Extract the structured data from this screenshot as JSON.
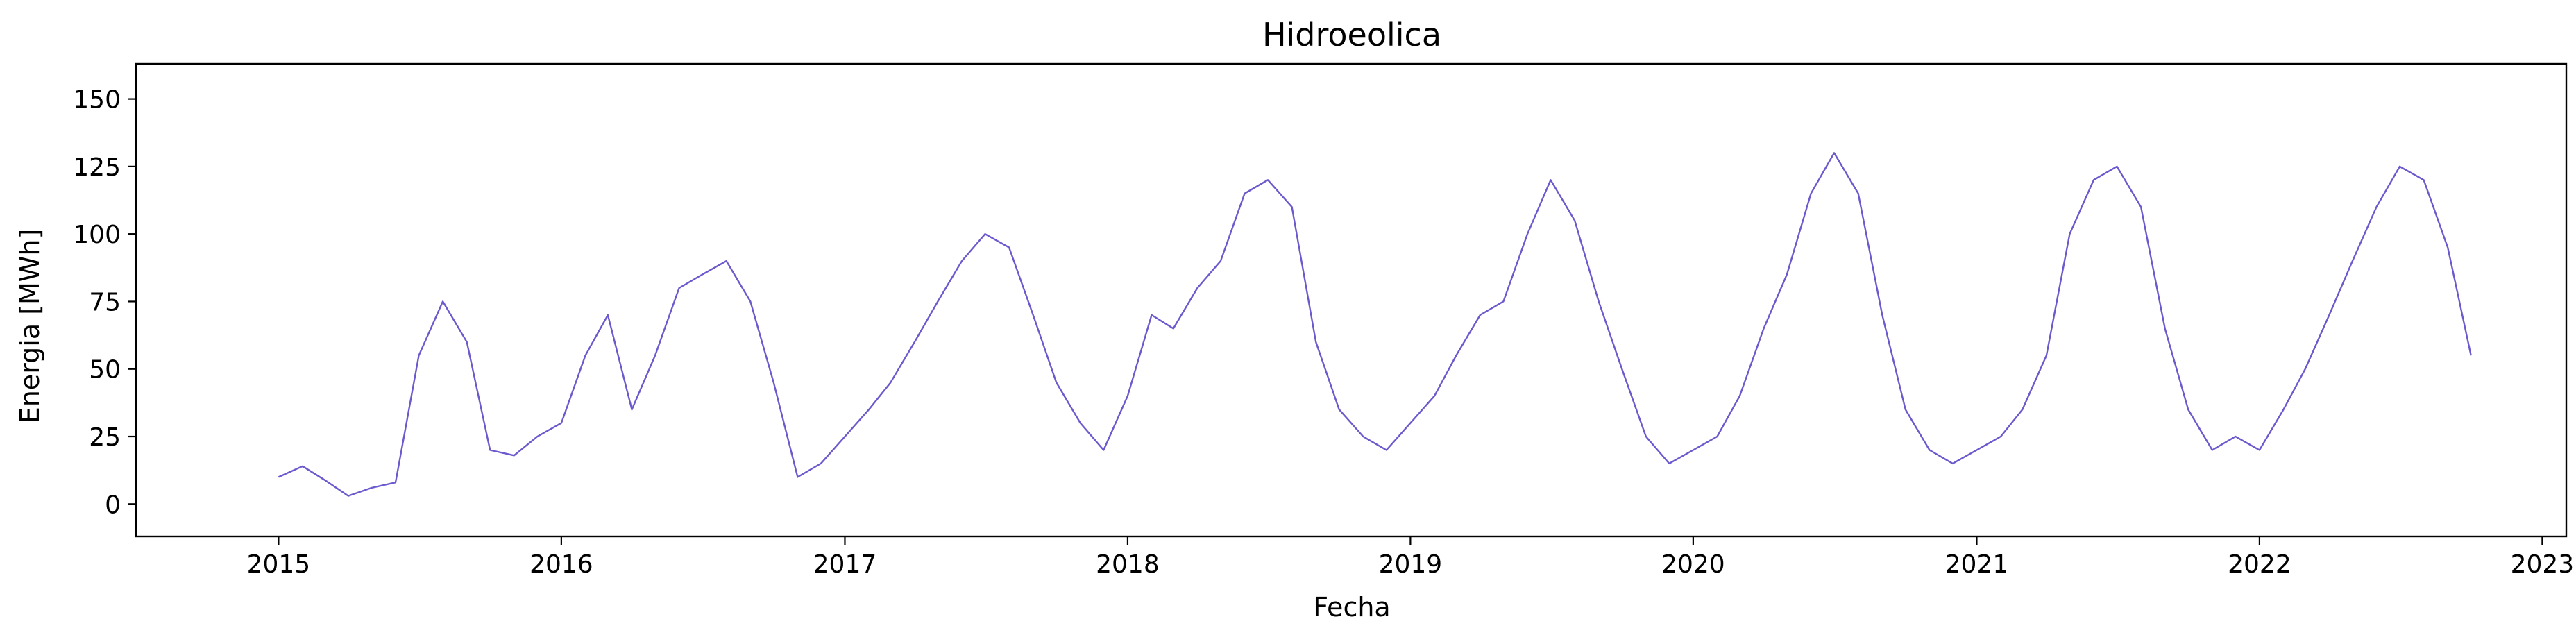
{
  "chart_data": {
    "type": "line",
    "title": "Hidroeolica",
    "xlabel": "Fecha",
    "ylabel": "Energia [MWh]",
    "xlim": [
      "2014-07-01",
      "2023-02-01"
    ],
    "ylim": [
      -12,
      163
    ],
    "x_ticks": [
      "2015",
      "2016",
      "2017",
      "2018",
      "2019",
      "2020",
      "2021",
      "2022",
      "2023"
    ],
    "y_ticks": [
      "0",
      "25",
      "50",
      "75",
      "100",
      "125",
      "150"
    ],
    "grid": false,
    "legend": "none",
    "series": [
      {
        "color": "#6a5acd",
        "x": [
          "2015-01-01",
          "2015-02-01",
          "2015-03-01",
          "2015-04-01",
          "2015-05-01",
          "2015-06-01",
          "2015-07-01",
          "2015-08-01",
          "2015-09-01",
          "2015-10-01",
          "2015-11-01",
          "2015-12-01",
          "2016-01-01",
          "2016-02-01",
          "2016-03-01",
          "2016-04-01",
          "2016-05-01",
          "2016-06-01",
          "2016-07-01",
          "2016-08-01",
          "2016-09-01",
          "2016-10-01",
          "2016-11-01",
          "2016-12-01",
          "2017-01-01",
          "2017-02-01",
          "2017-03-01",
          "2017-04-01",
          "2017-05-01",
          "2017-06-01",
          "2017-07-01",
          "2017-08-01",
          "2017-09-01",
          "2017-10-01",
          "2017-11-01",
          "2017-12-01",
          "2018-01-01",
          "2018-02-01",
          "2018-03-01",
          "2018-04-01",
          "2018-05-01",
          "2018-06-01",
          "2018-07-01",
          "2018-08-01",
          "2018-09-01",
          "2018-10-01",
          "2018-11-01",
          "2018-12-01",
          "2019-01-01",
          "2019-02-01",
          "2019-03-01",
          "2019-04-01",
          "2019-05-01",
          "2019-06-01",
          "2019-07-01",
          "2019-08-01",
          "2019-09-01",
          "2019-10-01",
          "2019-11-01",
          "2019-12-01",
          "2020-01-01",
          "2020-02-01",
          "2020-03-01",
          "2020-04-01",
          "2020-05-01",
          "2020-06-01",
          "2020-07-01",
          "2020-08-01",
          "2020-09-01",
          "2020-10-01",
          "2020-11-01",
          "2020-12-01",
          "2021-01-01",
          "2021-02-01",
          "2021-03-01",
          "2021-04-01",
          "2021-05-01",
          "2021-06-01",
          "2021-07-01",
          "2021-08-01",
          "2021-09-01",
          "2021-10-01",
          "2021-11-01",
          "2021-12-01",
          "2022-01-01",
          "2022-02-01",
          "2022-03-01",
          "2022-04-01",
          "2022-05-01",
          "2022-06-01",
          "2022-07-01",
          "2022-08-01",
          "2022-09-01",
          "2022-10-01"
        ],
        "y": [
          10,
          14,
          9,
          3,
          6,
          8,
          55,
          75,
          60,
          20,
          18,
          25,
          30,
          55,
          70,
          35,
          55,
          80,
          85,
          90,
          75,
          45,
          10,
          15,
          25,
          35,
          45,
          60,
          75,
          90,
          100,
          95,
          70,
          45,
          30,
          20,
          40,
          70,
          65,
          80,
          90,
          115,
          120,
          110,
          60,
          35,
          25,
          20,
          30,
          40,
          55,
          70,
          75,
          100,
          120,
          105,
          75,
          50,
          25,
          15,
          20,
          25,
          40,
          65,
          85,
          115,
          130,
          115,
          70,
          35,
          20,
          15,
          20,
          25,
          35,
          55,
          100,
          120,
          125,
          110,
          65,
          35,
          20,
          25,
          20,
          35,
          50,
          70,
          90,
          110,
          125,
          120,
          95,
          55
        ]
      }
    ]
  }
}
